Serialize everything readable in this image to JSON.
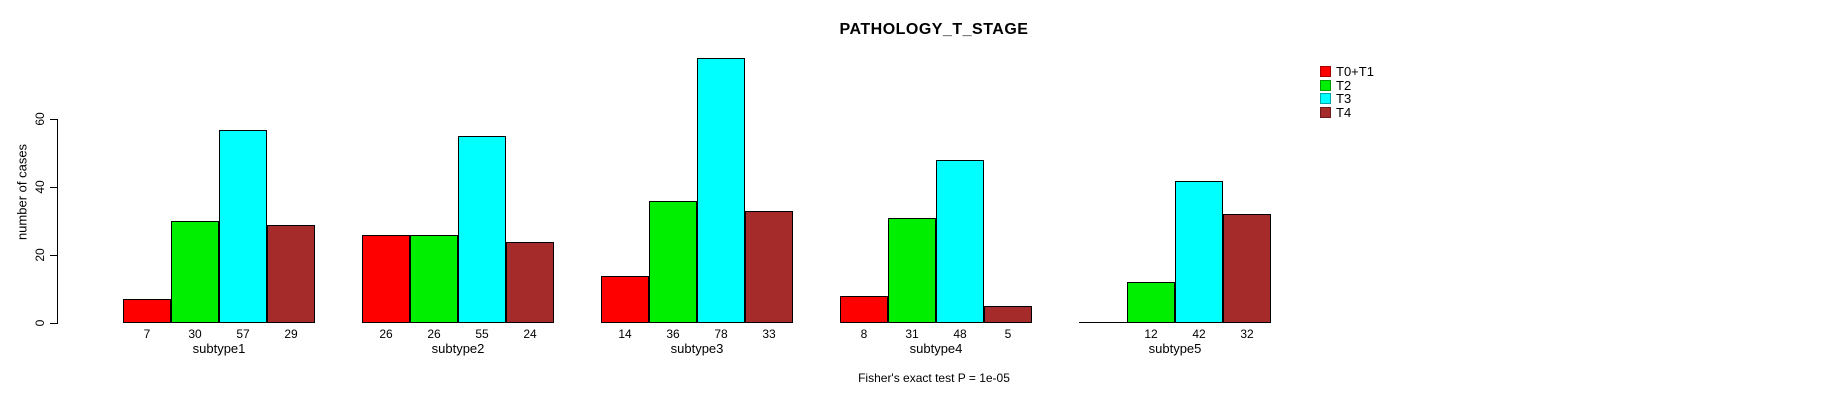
{
  "chart_data": {
    "type": "bar",
    "title": "PATHOLOGY_T_STAGE",
    "ylabel": "number of cases",
    "xlabel": "",
    "annotation": "Fisher's exact test P = 1e-05",
    "categories": [
      "subtype1",
      "subtype2",
      "subtype3",
      "subtype4",
      "subtype5"
    ],
    "series": [
      {
        "name": "T0+T1",
        "color": "#FF0000",
        "values": [
          7,
          26,
          14,
          8,
          0
        ]
      },
      {
        "name": "T2",
        "color": "#00EE00",
        "values": [
          30,
          26,
          36,
          31,
          12
        ]
      },
      {
        "name": "T3",
        "color": "#00FFFF",
        "values": [
          57,
          55,
          78,
          48,
          42
        ]
      },
      {
        "name": "T4",
        "color": "#A52A2A",
        "values": [
          29,
          24,
          33,
          5,
          32
        ]
      }
    ],
    "yticks": [
      0,
      20,
      40,
      60
    ],
    "ylim": [
      0,
      80
    ],
    "bar_value_labels_shown": true,
    "zero_value_labels_hidden": true,
    "grid": false,
    "legend_position": "right",
    "axis_color": "#000000",
    "background_color": "#FFFFFF"
  }
}
